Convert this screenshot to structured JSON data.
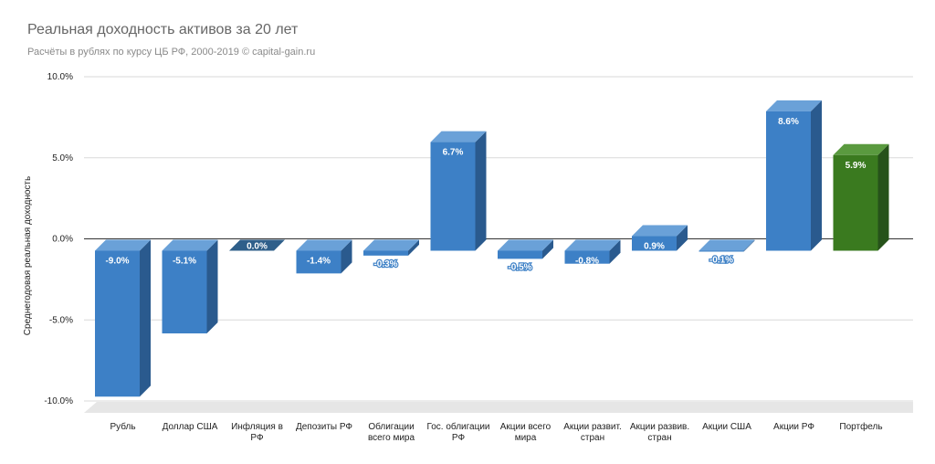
{
  "chart_data": {
    "type": "bar",
    "title": "Реальная доходность активов за 20 лет",
    "subtitle": "Расчёты в рублях по курсу ЦБ РФ, 2000-2019 © capital-gain.ru",
    "xlabel": "",
    "ylabel": "Среднегодовая реальная доходность",
    "ylim": [
      -10,
      10
    ],
    "yticks": [
      10,
      5,
      0,
      -5,
      -10
    ],
    "ytick_labels": [
      "10.0%",
      "5.0%",
      "0.0%",
      "-5.0%",
      "-10.0%"
    ],
    "grid": true,
    "legend": "none",
    "categories": [
      [
        "Рубль"
      ],
      [
        "Доллар США"
      ],
      [
        "Инфляция в",
        "РФ"
      ],
      [
        "Депозиты РФ"
      ],
      [
        "Облигации",
        "всего мира"
      ],
      [
        "Гос. облигации",
        "РФ"
      ],
      [
        "Акции всего",
        "мира"
      ],
      [
        "Акции развит.",
        "стран"
      ],
      [
        "Акции развив.",
        "стран"
      ],
      [
        "Акции США"
      ],
      [
        "Акции РФ"
      ],
      [
        "Портфель"
      ]
    ],
    "values": [
      -9.0,
      -5.1,
      0.0,
      -1.4,
      -0.3,
      6.7,
      -0.5,
      -0.8,
      0.9,
      -0.1,
      8.6,
      5.9
    ],
    "value_labels": [
      "-9.0%",
      "-5.1%",
      "0.0%",
      "-1.4%",
      "-0.3%",
      "6.7%",
      "-0.5%",
      "-0.8%",
      "0.9%",
      "-0.1%",
      "8.6%",
      "5.9%"
    ],
    "colors": {
      "default": {
        "front": "#3d80c6",
        "top": "#6aa1d8",
        "side": "#2a5a8e"
      },
      "highlight": {
        "front": "#3a7a1f",
        "top": "#5a9a3f",
        "side": "#26521a"
      },
      "zero": {
        "top": "#2f5f8a"
      }
    },
    "highlight_index": 11
  }
}
